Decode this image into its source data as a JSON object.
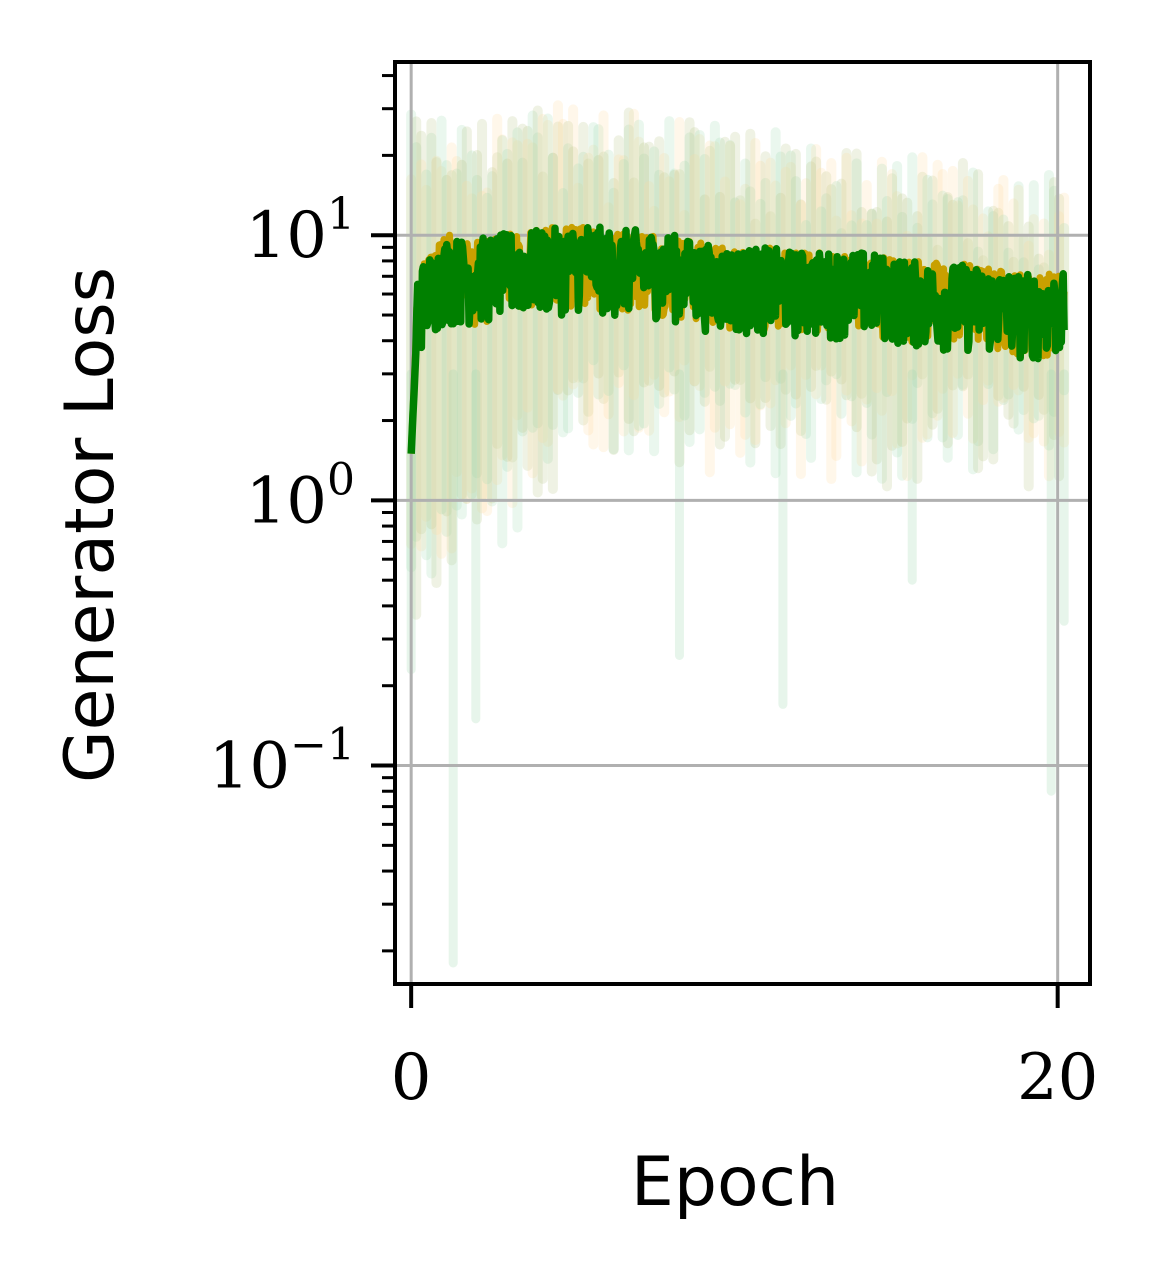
{
  "chart_data": {
    "type": "line",
    "xlabel": "Epoch",
    "ylabel": "Generator Loss",
    "y_scale": "log",
    "xlim": [
      -0.5,
      21
    ],
    "ylim": [
      0.015,
      45
    ],
    "x_ticks": [
      {
        "value": 0,
        "label": "0"
      },
      {
        "value": 20,
        "label": "20"
      }
    ],
    "y_ticks": [
      {
        "value": 0.1,
        "base": "10",
        "exp": "−1"
      },
      {
        "value": 1,
        "base": "10",
        "exp": "0"
      },
      {
        "value": 10,
        "base": "10",
        "exp": "1"
      }
    ],
    "grid": true,
    "legend": "none",
    "colors": {
      "green": "#008000",
      "gold": "#c8a000",
      "green_band": "#9fd9b0",
      "orange_band": "#ffd9a0",
      "olive_band": "#b5c585",
      "grid": "#b0b0b0"
    },
    "series": [
      {
        "color": "#c8a000",
        "points": [
          [
            0,
            1.5
          ],
          [
            0.2,
            5.5
          ],
          [
            1,
            7
          ],
          [
            2,
            6.5
          ],
          [
            3,
            7
          ],
          [
            4,
            7.5
          ],
          [
            5,
            7.5
          ],
          [
            5.5,
            8
          ],
          [
            6,
            7
          ],
          [
            7,
            7.5
          ],
          [
            8,
            7
          ],
          [
            9,
            6.5
          ],
          [
            10,
            6.2
          ],
          [
            11,
            6.2
          ],
          [
            12,
            6
          ],
          [
            13,
            6
          ],
          [
            14,
            6
          ],
          [
            15,
            5.8
          ],
          [
            16,
            5.5
          ],
          [
            17,
            5.5
          ],
          [
            18,
            5.2
          ],
          [
            19,
            5
          ],
          [
            20,
            5
          ],
          [
            20.2,
            4.8
          ]
        ],
        "spread_low": 0.7,
        "spread_high": 1.45,
        "band_low": [
          [
            0,
            0.6
          ],
          [
            5,
            2.5
          ],
          [
            10,
            2.3
          ],
          [
            15,
            2.2
          ],
          [
            20,
            2
          ]
        ],
        "band_high": [
          [
            0,
            20
          ],
          [
            5,
            22
          ],
          [
            10,
            18
          ],
          [
            15,
            15
          ],
          [
            20,
            12
          ]
        ]
      },
      {
        "color": "#008000",
        "points": [
          [
            0,
            1.5
          ],
          [
            0.2,
            5
          ],
          [
            1,
            6.5
          ],
          [
            2,
            6.5
          ],
          [
            3,
            6.8
          ],
          [
            4,
            7
          ],
          [
            5,
            7.2
          ],
          [
            5.5,
            7.5
          ],
          [
            6,
            7
          ],
          [
            7,
            7
          ],
          [
            8,
            6.8
          ],
          [
            9,
            6.2
          ],
          [
            10,
            6
          ],
          [
            11,
            6
          ],
          [
            12,
            5.8
          ],
          [
            13,
            5.8
          ],
          [
            14,
            5.8
          ],
          [
            15,
            5.5
          ],
          [
            16,
            5.2
          ],
          [
            17,
            5.2
          ],
          [
            18,
            5
          ],
          [
            19,
            4.8
          ],
          [
            20,
            4.8
          ],
          [
            20.2,
            4.8
          ]
        ],
        "spread_low": 0.7,
        "spread_high": 1.5,
        "band_low": [
          [
            0,
            0.5
          ],
          [
            5,
            2.4
          ],
          [
            10,
            2.2
          ],
          [
            15,
            2
          ],
          [
            20,
            1.9
          ]
        ],
        "band_high": [
          [
            0,
            22
          ],
          [
            5,
            24
          ],
          [
            10,
            20
          ],
          [
            15,
            16
          ],
          [
            20,
            13
          ]
        ]
      }
    ],
    "outlier_dips": [
      [
        0,
        0.23
      ],
      [
        1.3,
        0.018
      ],
      [
        2,
        0.15
      ],
      [
        8.3,
        0.26
      ],
      [
        11.5,
        0.17
      ],
      [
        15.5,
        0.5
      ],
      [
        19.8,
        0.08
      ],
      [
        20.2,
        0.35
      ]
    ]
  }
}
